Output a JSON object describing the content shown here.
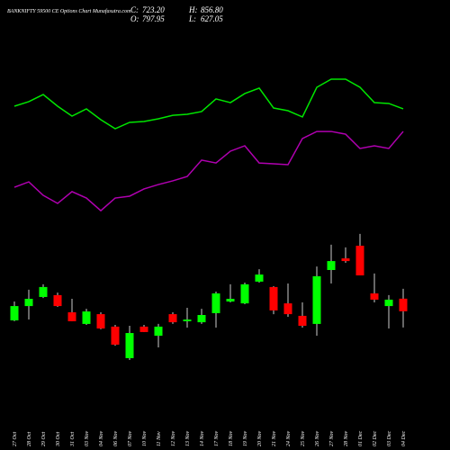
{
  "chart_data": {
    "type": "candlestick",
    "title": "BANKNIFTY 59500 CE Options Chart Munafasutra.com",
    "stats": [
      {
        "label": "C:",
        "value": "723.20"
      },
      {
        "label": "H:",
        "value": "856.80"
      },
      {
        "label": "O:",
        "value": "797.95"
      },
      {
        "label": "L:",
        "value": "627.05"
      }
    ],
    "categories": [
      "27 Oct",
      "28 Oct",
      "29 Oct",
      "30 Oct",
      "31 Oct",
      "03 Nov",
      "04 Nov",
      "06 Nov",
      "07 Nov",
      "10 Nov",
      "11 Nov",
      "12 Nov",
      "13 Nov",
      "14 Nov",
      "17 Nov",
      "18 Nov",
      "19 Nov",
      "20 Nov",
      "21 Nov",
      "24 Nov",
      "25 Nov",
      "26 Nov",
      "27 Nov",
      "28 Nov",
      "01 Dec",
      "02 Dec",
      "03 Dec",
      "04 Dec"
    ],
    "open": [
      669,
      754,
      808,
      819,
      717,
      648,
      706,
      632,
      445,
      632,
      578,
      706,
      664,
      658,
      712,
      781,
      770,
      899,
      867,
      770,
      696,
      648,
      968,
      1037,
      1112,
      829,
      754,
      797.95
    ],
    "high": [
      781,
      851,
      883,
      834,
      797,
      738,
      717,
      642,
      637,
      642,
      648,
      717,
      744,
      738,
      840,
      883,
      893,
      973,
      872,
      888,
      776,
      989,
      1118,
      1102,
      1182,
      947,
      819,
      856.8
    ],
    "low": [
      664,
      674,
      802,
      749,
      664,
      642,
      616,
      519,
      434,
      600,
      509,
      648,
      626,
      648,
      626,
      776,
      765,
      893,
      706,
      690,
      626,
      578,
      888,
      1011,
      936,
      776,
      621,
      627.05
    ],
    "close": [
      754,
      797,
      867,
      754,
      664,
      722,
      621,
      525,
      594,
      600,
      632,
      658,
      674,
      701,
      829,
      797,
      883,
      941,
      728,
      706,
      637,
      931,
      1021,
      1021,
      936,
      792,
      792,
      723.2
    ],
    "up_color": "#00ff00",
    "down_color": "#ff0000",
    "lines": [
      {
        "color": "#00e600",
        "values": [
          1940,
          1967,
          2009,
          1940,
          1881,
          1924,
          1860,
          1806,
          1844,
          1849,
          1865,
          1886,
          1892,
          1908,
          1983,
          1961,
          2015,
          2047,
          1929,
          1913,
          1876,
          2052,
          2100,
          2100,
          2052,
          1961,
          1956,
          1924
        ]
      },
      {
        "color": "#b000b0",
        "values": [
          1459,
          1491,
          1411,
          1363,
          1433,
          1395,
          1320,
          1395,
          1406,
          1449,
          1475,
          1497,
          1523,
          1620,
          1603,
          1673,
          1705,
          1603,
          1598,
          1593,
          1748,
          1790,
          1790,
          1774,
          1689,
          1705,
          1689,
          1790
        ]
      }
    ],
    "ylim": [
      -100,
      2570
    ]
  }
}
